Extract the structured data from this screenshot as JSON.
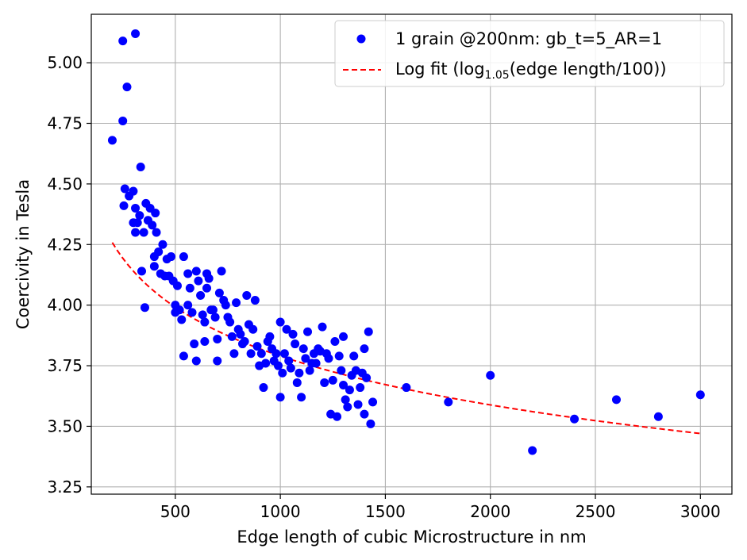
{
  "chart_data": {
    "type": "scatter",
    "xlabel": "Edge length of cubic Microstructure in nm",
    "ylabel": "Coercivity in Tesla",
    "xlim": [
      100,
      3150
    ],
    "ylim": [
      3.22,
      5.2
    ],
    "x_ticks": [
      500,
      1000,
      1500,
      2000,
      2500,
      3000
    ],
    "y_ticks": [
      3.25,
      3.5,
      3.75,
      4.0,
      4.25,
      4.5,
      4.75,
      5.0
    ],
    "x_tick_labels": [
      "500",
      "1000",
      "1500",
      "2000",
      "2500",
      "3000"
    ],
    "y_tick_labels": [
      "3.25",
      "3.50",
      "3.75",
      "4.00",
      "4.25",
      "4.50",
      "4.75",
      "5.00"
    ],
    "grid": true,
    "legend_position": "top-right",
    "series": [
      {
        "name": "1 grain @200nm: gb_t=5_AR=1",
        "kind": "scatter",
        "color": "#0000ff",
        "points": [
          [
            200,
            4.68
          ],
          [
            250,
            5.09
          ],
          [
            250,
            4.76
          ],
          [
            260,
            4.48
          ],
          [
            255,
            4.41
          ],
          [
            270,
            4.9
          ],
          [
            280,
            4.45
          ],
          [
            300,
            4.47
          ],
          [
            310,
            5.12
          ],
          [
            310,
            4.4
          ],
          [
            300,
            4.34
          ],
          [
            310,
            4.3
          ],
          [
            320,
            4.34
          ],
          [
            330,
            4.37
          ],
          [
            335,
            4.57
          ],
          [
            340,
            4.14
          ],
          [
            350,
            4.3
          ],
          [
            355,
            3.99
          ],
          [
            360,
            4.42
          ],
          [
            370,
            4.35
          ],
          [
            380,
            4.4
          ],
          [
            390,
            4.33
          ],
          [
            400,
            4.2
          ],
          [
            400,
            4.16
          ],
          [
            405,
            4.38
          ],
          [
            410,
            4.3
          ],
          [
            420,
            4.22
          ],
          [
            430,
            4.13
          ],
          [
            440,
            4.25
          ],
          [
            450,
            4.12
          ],
          [
            460,
            4.19
          ],
          [
            470,
            4.12
          ],
          [
            480,
            4.2
          ],
          [
            490,
            4.1
          ],
          [
            500,
            4.0
          ],
          [
            500,
            3.97
          ],
          [
            510,
            4.08
          ],
          [
            520,
            3.98
          ],
          [
            530,
            3.94
          ],
          [
            540,
            4.2
          ],
          [
            540,
            3.79
          ],
          [
            560,
            4.13
          ],
          [
            560,
            4.0
          ],
          [
            570,
            4.07
          ],
          [
            580,
            3.97
          ],
          [
            590,
            3.84
          ],
          [
            600,
            4.14
          ],
          [
            600,
            3.77
          ],
          [
            610,
            4.1
          ],
          [
            620,
            4.04
          ],
          [
            630,
            3.96
          ],
          [
            640,
            3.93
          ],
          [
            640,
            3.85
          ],
          [
            650,
            4.13
          ],
          [
            650,
            4.07
          ],
          [
            660,
            4.11
          ],
          [
            670,
            3.98
          ],
          [
            680,
            3.98
          ],
          [
            690,
            3.95
          ],
          [
            700,
            3.86
          ],
          [
            700,
            3.77
          ],
          [
            710,
            4.05
          ],
          [
            720,
            4.14
          ],
          [
            730,
            4.02
          ],
          [
            740,
            4.0
          ],
          [
            750,
            3.95
          ],
          [
            760,
            3.93
          ],
          [
            770,
            3.87
          ],
          [
            780,
            3.8
          ],
          [
            790,
            4.01
          ],
          [
            800,
            3.9
          ],
          [
            810,
            3.88
          ],
          [
            820,
            3.84
          ],
          [
            830,
            3.85
          ],
          [
            840,
            4.04
          ],
          [
            850,
            3.92
          ],
          [
            860,
            3.8
          ],
          [
            870,
            3.9
          ],
          [
            880,
            4.02
          ],
          [
            890,
            3.83
          ],
          [
            900,
            3.75
          ],
          [
            910,
            3.8
          ],
          [
            920,
            3.66
          ],
          [
            930,
            3.76
          ],
          [
            940,
            3.85
          ],
          [
            950,
            3.87
          ],
          [
            960,
            3.82
          ],
          [
            970,
            3.77
          ],
          [
            980,
            3.8
          ],
          [
            990,
            3.75
          ],
          [
            1000,
            3.93
          ],
          [
            1000,
            3.62
          ],
          [
            1010,
            3.72
          ],
          [
            1020,
            3.8
          ],
          [
            1030,
            3.9
          ],
          [
            1040,
            3.77
          ],
          [
            1050,
            3.74
          ],
          [
            1060,
            3.88
          ],
          [
            1070,
            3.84
          ],
          [
            1080,
            3.68
          ],
          [
            1090,
            3.72
          ],
          [
            1100,
            3.62
          ],
          [
            1110,
            3.82
          ],
          [
            1120,
            3.78
          ],
          [
            1130,
            3.89
          ],
          [
            1140,
            3.73
          ],
          [
            1150,
            3.76
          ],
          [
            1160,
            3.8
          ],
          [
            1170,
            3.76
          ],
          [
            1180,
            3.82
          ],
          [
            1190,
            3.81
          ],
          [
            1200,
            3.91
          ],
          [
            1210,
            3.68
          ],
          [
            1220,
            3.8
          ],
          [
            1230,
            3.78
          ],
          [
            1240,
            3.55
          ],
          [
            1250,
            3.69
          ],
          [
            1260,
            3.85
          ],
          [
            1270,
            3.54
          ],
          [
            1280,
            3.79
          ],
          [
            1290,
            3.73
          ],
          [
            1300,
            3.87
          ],
          [
            1300,
            3.67
          ],
          [
            1310,
            3.61
          ],
          [
            1320,
            3.58
          ],
          [
            1330,
            3.65
          ],
          [
            1340,
            3.71
          ],
          [
            1350,
            3.79
          ],
          [
            1360,
            3.73
          ],
          [
            1370,
            3.59
          ],
          [
            1380,
            3.66
          ],
          [
            1390,
            3.72
          ],
          [
            1400,
            3.82
          ],
          [
            1400,
            3.55
          ],
          [
            1410,
            3.7
          ],
          [
            1420,
            3.89
          ],
          [
            1430,
            3.51
          ],
          [
            1440,
            3.6
          ],
          [
            1600,
            3.66
          ],
          [
            1800,
            3.6
          ],
          [
            2000,
            3.71
          ],
          [
            2200,
            3.4
          ],
          [
            2400,
            3.53
          ],
          [
            2600,
            3.61
          ],
          [
            2800,
            3.54
          ],
          [
            3000,
            3.63
          ]
        ]
      },
      {
        "name": "Log fit (log",
        "name_sub": "1.05",
        "name_tail": "(edge length/100))",
        "kind": "line",
        "style": "dashed",
        "color": "#ff0000",
        "x_range": [
          200,
          3000
        ],
        "fit_y": {
          "ref_x": 1000,
          "ref_y": 3.79,
          "slope_per_decade": -0.67
        }
      }
    ]
  }
}
